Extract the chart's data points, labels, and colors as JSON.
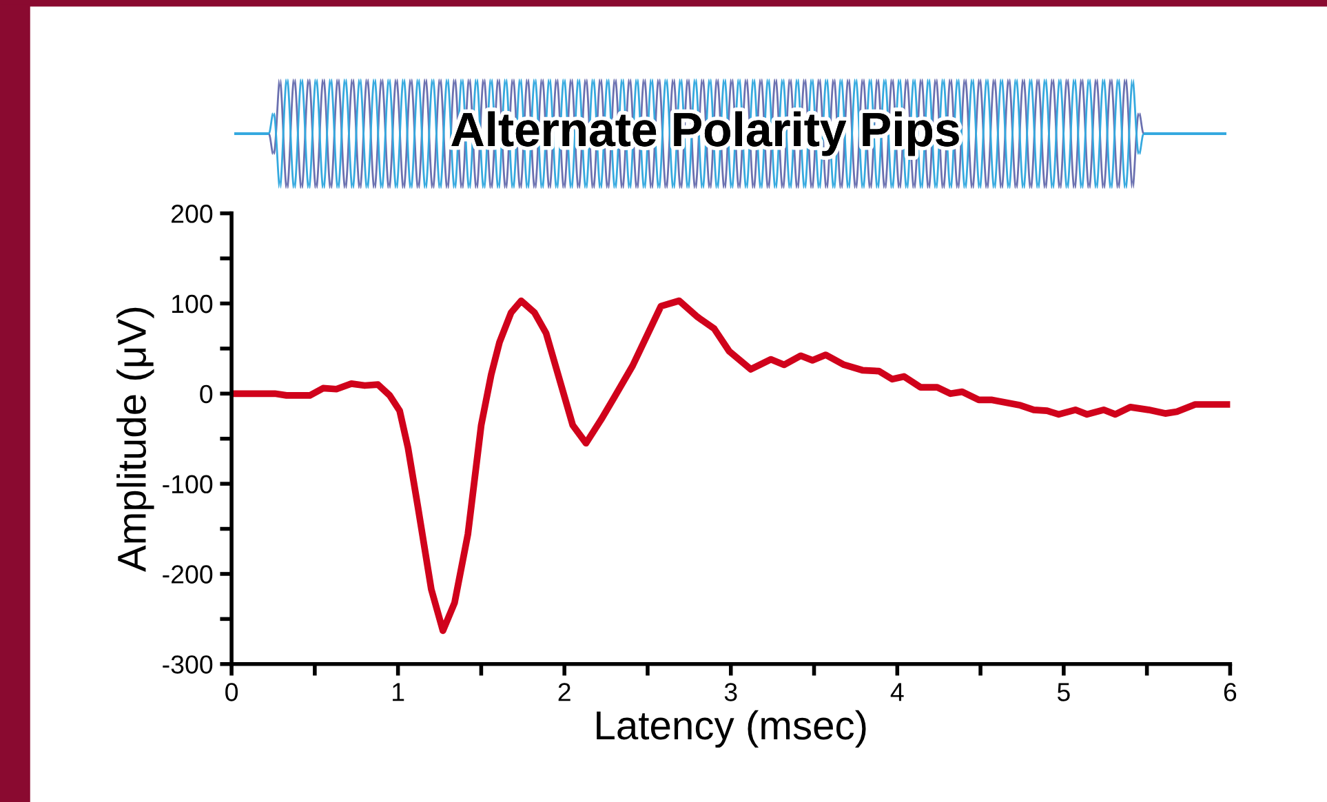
{
  "chart_data": {
    "type": "line",
    "title": "Alternate Polarity Pips",
    "xlabel": "Latency (msec)",
    "ylabel": "Amplitude (μV)",
    "series": [
      {
        "color": "#d0021b",
        "x": [
          0,
          0.26,
          0.33,
          0.47,
          0.55,
          0.63,
          0.72,
          0.8,
          0.88,
          0.95,
          1.01,
          1.06,
          1.12,
          1.2,
          1.27,
          1.34,
          1.42,
          1.5,
          1.56,
          1.61,
          1.68,
          1.74,
          1.82,
          1.89,
          1.97,
          2.05,
          2.13,
          2.22,
          2.3,
          2.41,
          2.49,
          2.58,
          2.69,
          2.8,
          2.9,
          2.99,
          3.12,
          3.24,
          3.32,
          3.42,
          3.49,
          3.57,
          3.68,
          3.79,
          3.89,
          3.97,
          4.04,
          4.14,
          4.24,
          4.32,
          4.39,
          4.49,
          4.57,
          4.74,
          4.82,
          4.9,
          4.97,
          5.07,
          5.14,
          5.24,
          5.31,
          5.4,
          5.51,
          5.61,
          5.68,
          5.79,
          6.0
        ],
        "values": [
          0,
          0,
          -2,
          -2,
          6,
          5,
          11,
          9,
          10,
          -2,
          -19,
          -60,
          -126,
          -217,
          -263,
          -232,
          -156,
          -35,
          21,
          57,
          90,
          103,
          90,
          67,
          16,
          -35,
          -55,
          -29,
          -4,
          31,
          62,
          97,
          103,
          85,
          72,
          47,
          27,
          38,
          32,
          42,
          37,
          43,
          32,
          26,
          25,
          16,
          19,
          7,
          7,
          0,
          2,
          -7,
          -7,
          -13,
          -18,
          -19,
          -23,
          -18,
          -23,
          -18,
          -23,
          -15,
          -18,
          -22,
          -20,
          -12,
          -12
        ]
      }
    ],
    "xlim": [
      0,
      6
    ],
    "ylim": [
      -300,
      200
    ],
    "xticks": [
      0,
      {
        "value": 0.5,
        "label": null
      },
      1,
      {
        "value": 1.5,
        "label": null
      },
      2,
      {
        "value": 2.5,
        "label": null
      },
      3,
      {
        "value": 3.5,
        "label": null
      },
      4,
      {
        "value": 4.5,
        "label": null
      },
      5,
      {
        "value": 5.5,
        "label": null
      },
      6
    ],
    "yticks": [
      -300,
      {
        "value": -250,
        "label": null
      },
      -200,
      {
        "value": -150,
        "label": null
      },
      -100,
      {
        "value": -50,
        "label": null
      },
      0,
      {
        "value": 50,
        "label": null
      },
      100,
      {
        "value": 150,
        "label": null
      },
      200
    ],
    "grid": false,
    "legend": false,
    "marker": "none",
    "line_style": "solid"
  }
}
